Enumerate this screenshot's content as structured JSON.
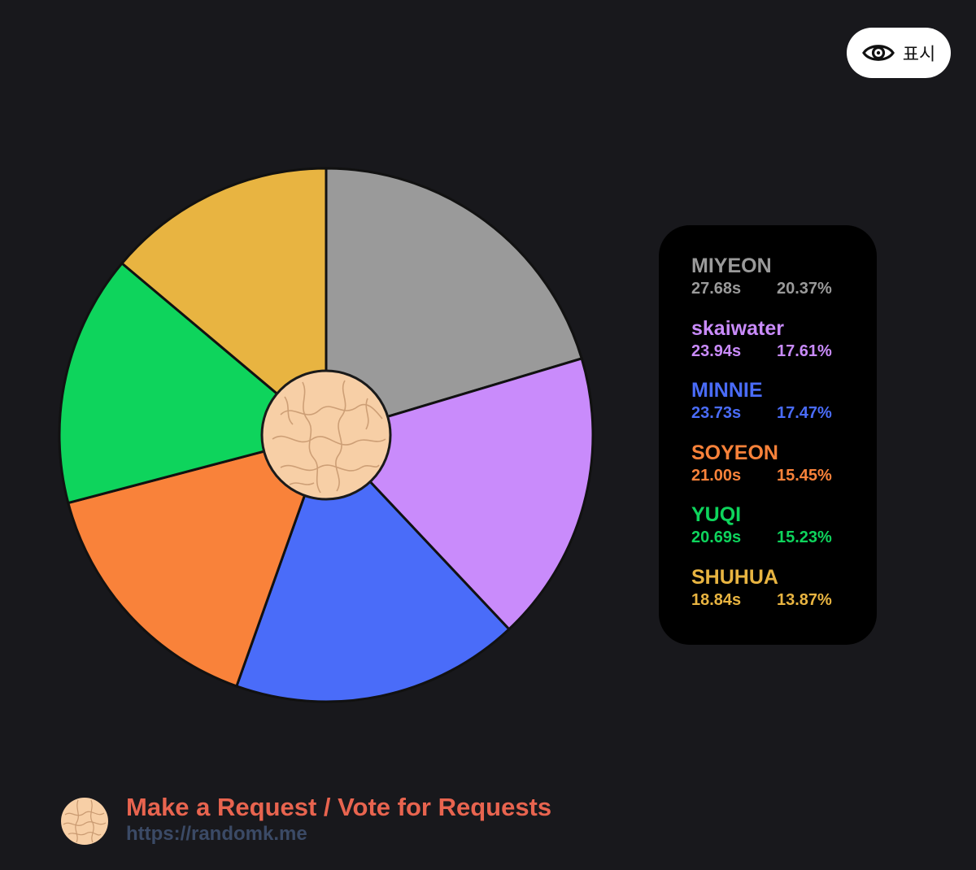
{
  "show_button": {
    "label": "표시",
    "icon": "eye-icon"
  },
  "chart_data": {
    "type": "pie",
    "title": "",
    "slices": [
      {
        "name": "MIYEON",
        "time": "27.68s",
        "percent": "20.37%",
        "value": 20.37,
        "color": "#9a9a9a"
      },
      {
        "name": "skaiwater",
        "time": "23.94s",
        "percent": "17.61%",
        "value": 17.61,
        "color": "#c98bfb"
      },
      {
        "name": "MINNIE",
        "time": "23.73s",
        "percent": "17.47%",
        "value": 17.47,
        "color": "#4a6cf9"
      },
      {
        "name": "SOYEON",
        "time": "21.00s",
        "percent": "15.45%",
        "value": 15.45,
        "color": "#f9823a"
      },
      {
        "name": "YUQI",
        "time": "20.69s",
        "percent": "15.23%",
        "value": 15.23,
        "color": "#0ed45c"
      },
      {
        "name": "SHUHUA",
        "time": "18.84s",
        "percent": "13.87%",
        "value": 13.87,
        "color": "#e8b441"
      }
    ],
    "legend_position": "right"
  },
  "center_icon": "randomk-logo-icon",
  "footer": {
    "cta": "Make a Request / Vote for Requests",
    "url": "https://randomk.me"
  }
}
